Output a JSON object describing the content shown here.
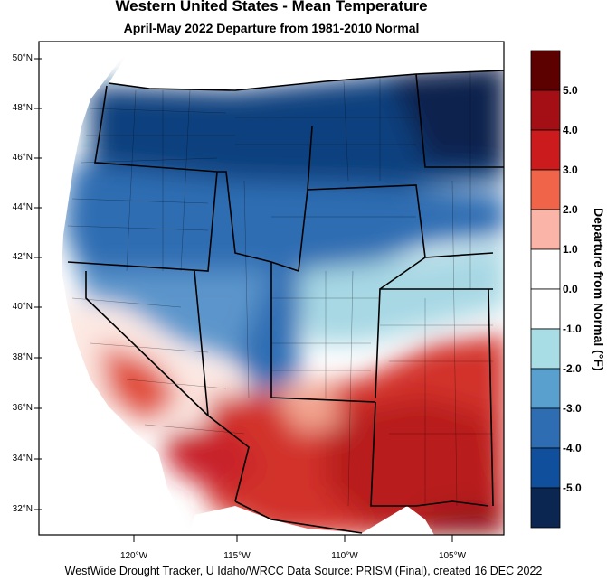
{
  "title": "Western United States - Mean Temperature",
  "subtitle": "April-May 2022  Departure from 1981-2010 Normal",
  "footer": "WestWide Drought Tracker, U Idaho/WRCC Data Source: PRISM (Final), created 16 DEC 2022",
  "lat_labels": [
    "50°N",
    "48°N",
    "46°N",
    "44°N",
    "42°N",
    "40°N",
    "38°N",
    "36°N",
    "34°N",
    "32°N"
  ],
  "lon_labels": [
    "120°W",
    "115°W",
    "110°W",
    "105°W"
  ],
  "colorbar": {
    "title": "Departure from Normal (°F)",
    "labels": [
      "5.0",
      "4.0",
      "3.0",
      "2.0",
      "1.0",
      "0.0",
      "-1.0",
      "-2.0",
      "-3.0",
      "-4.0",
      "-5.0"
    ],
    "colors": [
      "#5c0000",
      "#a30f15",
      "#cb1b1d",
      "#f06549",
      "#fbb4a8",
      "#ffffff",
      "#ffffff",
      "#a8dde6",
      "#5aa0cf",
      "#2f6db3",
      "#104f9c",
      "#0b2650"
    ]
  },
  "colors": {
    "ocean": "#ffffff",
    "land": "#ffffff"
  }
}
